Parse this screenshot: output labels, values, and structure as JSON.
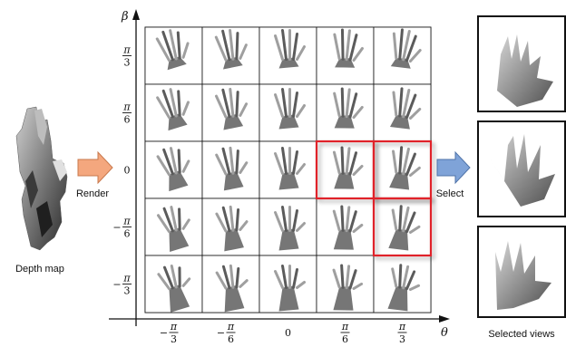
{
  "left": {
    "caption": "Depth map"
  },
  "arrows": {
    "render_label": "Render",
    "select_label": "Select"
  },
  "axes": {
    "x_label": "θ",
    "y_label": "β"
  },
  "x_ticks": [
    {
      "sign": "−",
      "num": "π",
      "den": "3"
    },
    {
      "sign": "−",
      "num": "π",
      "den": "6"
    },
    {
      "sign": "",
      "num": "0",
      "den": ""
    },
    {
      "sign": "",
      "num": "π",
      "den": "6"
    },
    {
      "sign": "",
      "num": "π",
      "den": "3"
    }
  ],
  "y_ticks": [
    {
      "sign": "",
      "num": "π",
      "den": "3"
    },
    {
      "sign": "",
      "num": "π",
      "den": "6"
    },
    {
      "sign": "",
      "num": "0",
      "den": ""
    },
    {
      "sign": "−",
      "num": "π",
      "den": "6"
    },
    {
      "sign": "−",
      "num": "π",
      "den": "3"
    }
  ],
  "grid": {
    "rows": 5,
    "cols": 5
  },
  "selected_cells": [
    [
      2,
      3
    ],
    [
      2,
      4
    ],
    [
      3,
      4
    ]
  ],
  "right": {
    "caption": "Selected views"
  },
  "colors": {
    "render_arrow": "#f4a77e",
    "select_arrow": "#7fa3d8",
    "highlight": "#e0202a"
  }
}
